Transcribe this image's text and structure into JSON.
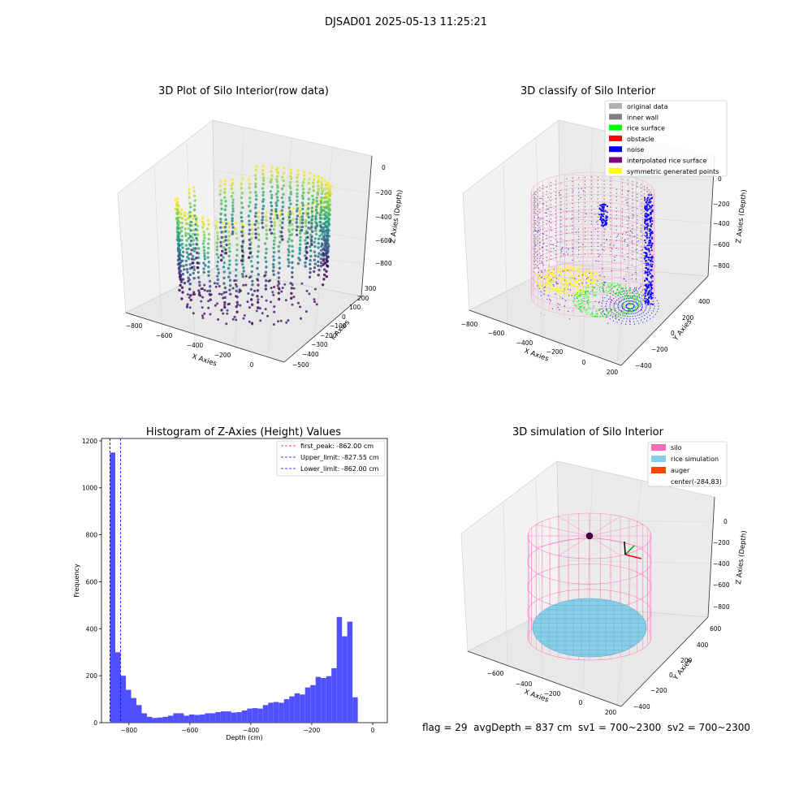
{
  "figure_title": "DJSAD01 2025-05-13 11:25:21",
  "status_line": "flag = 29  avgDepth = 837 cm  sv1 = 700~2300  sv2 = 700~2300",
  "colors": {
    "hist_bar": "#5050ff",
    "first_peak": "#ff0000",
    "limit_line": "#0000ff",
    "silo": "#ff69b4",
    "rice_simulation": "#87ceeb",
    "auger": "#ff4500",
    "grid": "#d8d8d8",
    "pane": "#f2f2f2"
  },
  "chart_data": [
    {
      "id": "raw",
      "type": "scatter",
      "title": "3D Plot of Silo Interior(row data)",
      "xlabel": "X Axies",
      "ylabel": "Y Axies",
      "zlabel": "Z Axies (Depth)",
      "x_ticks": [
        "−800",
        "−600",
        "−400",
        "−200",
        "0"
      ],
      "y_ticks": [
        "300",
        "200",
        "100",
        "0",
        "−100",
        "−200",
        "−300",
        "−400",
        "−500"
      ],
      "z_ticks": [
        "0",
        "−200",
        "−400",
        "−600",
        "−800"
      ],
      "colormap": "viridis",
      "xlim": [
        -880,
        40
      ],
      "ylim": [
        -520,
        320
      ],
      "zlim": [
        -860,
        0
      ]
    },
    {
      "id": "classify",
      "type": "scatter",
      "title": "3D classify of Silo Interior",
      "xlabel": "X Axies",
      "ylabel": "Y Axies",
      "zlabel": "Z Axies (Depth)",
      "x_ticks": [
        "−800",
        "−600",
        "−400",
        "−200",
        "0",
        "200"
      ],
      "y_ticks": [
        "400",
        "200",
        "0",
        "−200",
        "−400"
      ],
      "z_ticks": [
        "0",
        "−200",
        "−400",
        "−600",
        "−800"
      ],
      "legend_position": "top-right",
      "legend": [
        {
          "label": "original data",
          "color": "#b0b0b0"
        },
        {
          "label": "inner wall",
          "color": "#808080"
        },
        {
          "label": "rice surface",
          "color": "#00ff00"
        },
        {
          "label": "obstacle",
          "color": "#ff0000"
        },
        {
          "label": "noise",
          "color": "#0000ff"
        },
        {
          "label": "interpolated rice surface",
          "color": "#800080"
        },
        {
          "label": "symmetric generated points",
          "color": "#ffff00"
        }
      ]
    },
    {
      "id": "histogram",
      "type": "bar",
      "title": "Histogram of Z-Axies (Height) Values",
      "xlabel": "Depth (cm)",
      "ylabel": "Frequency",
      "x_ticks": [
        -800,
        -600,
        -400,
        -200,
        0
      ],
      "x_tick_labels": [
        "−800",
        "−600",
        "−400",
        "−200",
        "0"
      ],
      "y_ticks": [
        0,
        200,
        400,
        600,
        800,
        1000,
        1200
      ],
      "xlim": [
        -890,
        48
      ],
      "ylim": [
        0,
        1210
      ],
      "bin_start": -862,
      "bin_width": 17.3,
      "values": [
        1150,
        300,
        200,
        140,
        105,
        75,
        40,
        25,
        20,
        22,
        25,
        30,
        40,
        40,
        30,
        35,
        33,
        35,
        40,
        40,
        45,
        48,
        48,
        43,
        45,
        52,
        60,
        62,
        60,
        75,
        85,
        88,
        85,
        100,
        112,
        125,
        120,
        150,
        160,
        195,
        190,
        198,
        232,
        450,
        368,
        430,
        108
      ],
      "vlines": [
        {
          "label": "first_peak: -862.00 cm",
          "value": -862,
          "color": "#ff0000"
        },
        {
          "label": "Upper_limit: -827.55 cm",
          "value": -827.55,
          "color": "#0000ff"
        },
        {
          "label": "Lower_limit: -862.00 cm",
          "value": -862,
          "color": "#0000ff"
        }
      ],
      "legend_position": "top-right"
    },
    {
      "id": "simulation",
      "type": "scatter",
      "title": "3D simulation of Silo Interior",
      "xlabel": "X Axies",
      "ylabel": "Y Axies",
      "zlabel": "Z Axies (Depth)",
      "x_ticks": [
        "−600",
        "−400",
        "−200",
        "0",
        "200"
      ],
      "y_ticks": [
        "600",
        "400",
        "200",
        "0",
        "−200",
        "−400"
      ],
      "z_ticks": [
        "0",
        "−200",
        "−400",
        "−600",
        "−800"
      ],
      "legend_position": "top-right",
      "legend": [
        {
          "label": "silo",
          "color": "#ff69b4"
        },
        {
          "label": "rice simulation",
          "color": "#87ceeb"
        },
        {
          "label": "auger",
          "color": "#ff4500"
        },
        {
          "label": "center(-284,83)",
          "color": ""
        }
      ]
    }
  ]
}
